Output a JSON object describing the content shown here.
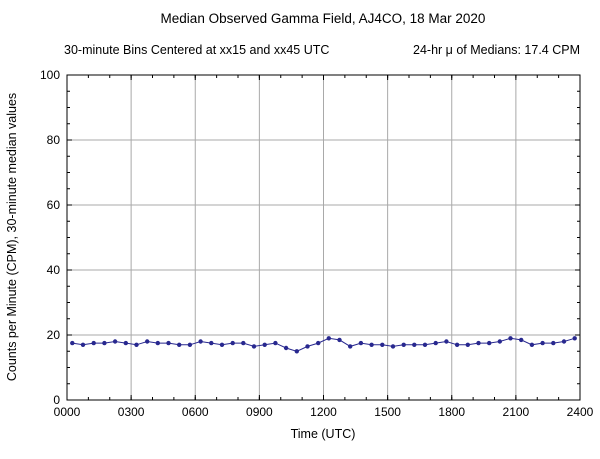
{
  "chart_data": {
    "type": "line",
    "title": "Median Observed Gamma Field, AJ4CO, 18 Mar 2020",
    "subtitle_left": "30-minute Bins Centered at xx15 and xx45 UTC",
    "subtitle_right": "24-hr μ of Medians: 17.4 CPM",
    "xlabel": "Time (UTC)",
    "ylabel": "Counts per Minute (CPM), 30-minute median values",
    "xlim": [
      0,
      1440
    ],
    "ylim": [
      0,
      100
    ],
    "grid": true,
    "legend": "none",
    "x_ticks": [
      {
        "value": 0,
        "label": "0000"
      },
      {
        "value": 180,
        "label": "0300"
      },
      {
        "value": 360,
        "label": "0600"
      },
      {
        "value": 540,
        "label": "0900"
      },
      {
        "value": 720,
        "label": "1200"
      },
      {
        "value": 900,
        "label": "1500"
      },
      {
        "value": 1080,
        "label": "1800"
      },
      {
        "value": 1260,
        "label": "2100"
      },
      {
        "value": 1440,
        "label": "2400"
      }
    ],
    "y_ticks": [
      0,
      20,
      40,
      60,
      80,
      100
    ],
    "x_minor_step": 60,
    "y_minor_step": 5,
    "series": [
      {
        "name": "30-minute median gamma field (CPM)",
        "color": "#28288f",
        "marker": "dot",
        "x": [
          15,
          45,
          75,
          105,
          135,
          165,
          195,
          225,
          255,
          285,
          315,
          345,
          375,
          405,
          435,
          465,
          495,
          525,
          555,
          585,
          615,
          645,
          675,
          705,
          735,
          765,
          795,
          825,
          855,
          885,
          915,
          945,
          975,
          1005,
          1035,
          1065,
          1095,
          1125,
          1155,
          1185,
          1215,
          1245,
          1275,
          1305,
          1335,
          1365,
          1395,
          1425
        ],
        "y": [
          17.5,
          17,
          17.5,
          17.5,
          18,
          17.5,
          17,
          18,
          17.5,
          17.5,
          17,
          17,
          18,
          17.5,
          17,
          17.5,
          17.5,
          16.5,
          17,
          17.5,
          16,
          15,
          16.5,
          17.5,
          19,
          18.5,
          16.5,
          17.5,
          17,
          17,
          16.5,
          17,
          17,
          17,
          17.5,
          18,
          17,
          17,
          17.5,
          17.5,
          18,
          19,
          18.5,
          17,
          17.5,
          17.5,
          18,
          19
        ]
      }
    ]
  }
}
